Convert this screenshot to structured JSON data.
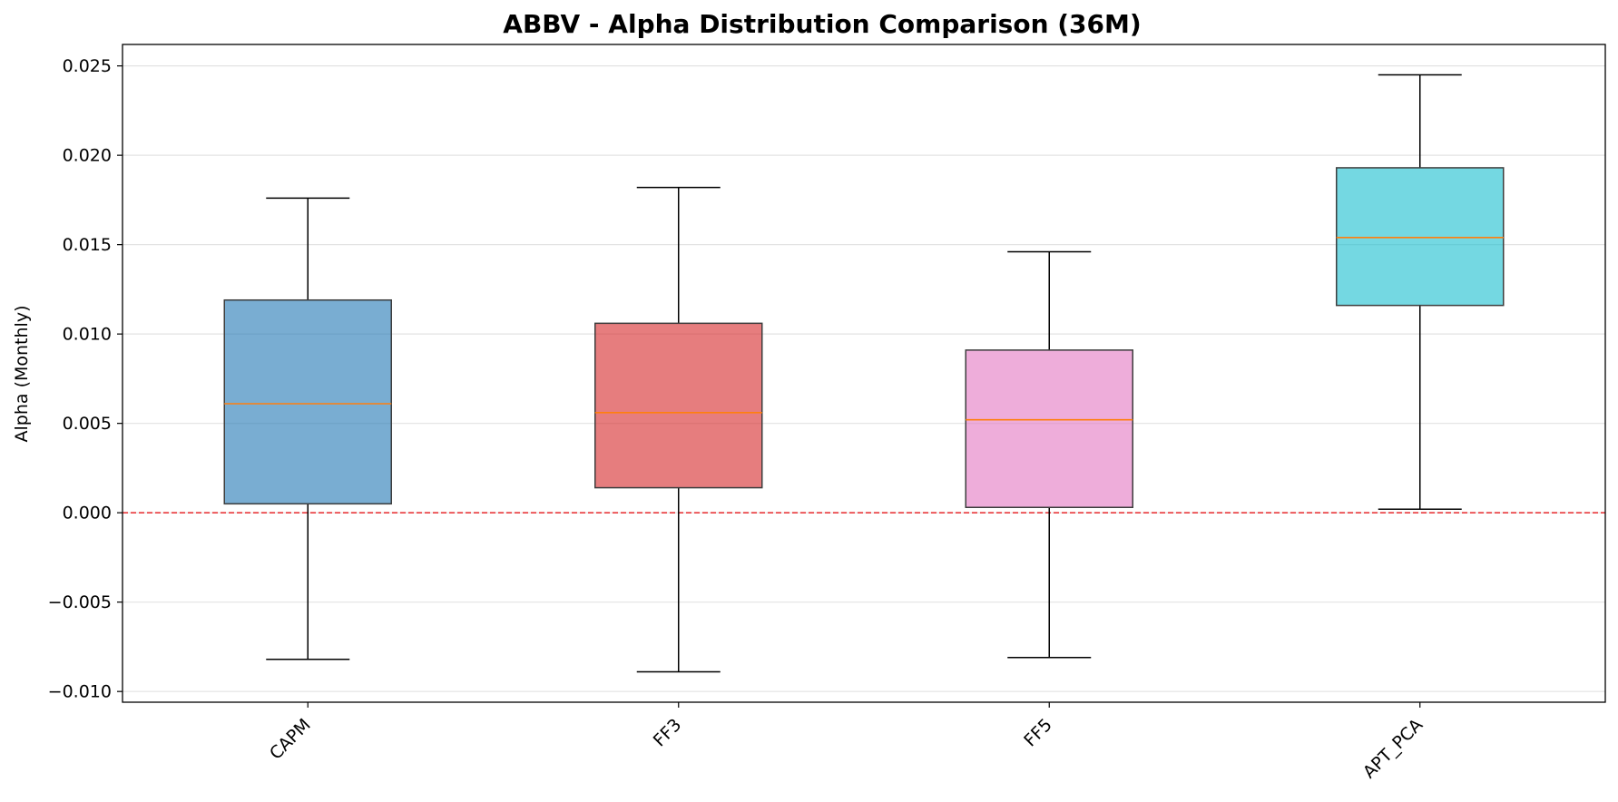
{
  "chart_data": {
    "type": "boxplot",
    "title": "ABBV - Alpha Distribution Comparison (36M)",
    "xlabel": "",
    "ylabel": "Alpha (Monthly)",
    "ylim": [
      -0.0106,
      0.0262
    ],
    "yticks": [
      {
        "value": 0.025,
        "label": "0.025"
      },
      {
        "value": 0.02,
        "label": "0.020"
      },
      {
        "value": 0.015,
        "label": "0.015"
      },
      {
        "value": 0.01,
        "label": "0.010"
      },
      {
        "value": 0.005,
        "label": "0.005"
      },
      {
        "value": 0.0,
        "label": "0.000"
      },
      {
        "value": -0.005,
        "label": "−0.005"
      },
      {
        "value": -0.01,
        "label": "−0.010"
      }
    ],
    "grid": "horizontal",
    "reference_line": {
      "value": 0.0,
      "color": "#e8383b",
      "style": "dashed"
    },
    "median_color": "#ff7f0e",
    "categories": [
      "CAPM",
      "FF3",
      "FF5",
      "APT_PCA"
    ],
    "boxes": [
      {
        "name": "CAPM",
        "whisker_low": -0.0082,
        "q1": 0.0005,
        "median": 0.0061,
        "q3": 0.0119,
        "whisker_high": 0.0176,
        "color": "#1f77b4"
      },
      {
        "name": "FF3",
        "whisker_low": -0.0089,
        "q1": 0.0014,
        "median": 0.0056,
        "q3": 0.0106,
        "whisker_high": 0.0182,
        "color": "#d62728"
      },
      {
        "name": "FF5",
        "whisker_low": -0.0081,
        "q1": 0.0003,
        "median": 0.0052,
        "q3": 0.0091,
        "whisker_high": 0.0146,
        "color": "#e377c2"
      },
      {
        "name": "APT_PCA",
        "whisker_low": 0.0002,
        "q1": 0.0116,
        "median": 0.0154,
        "q3": 0.0193,
        "whisker_high": 0.0245,
        "color": "#17becf"
      }
    ]
  }
}
